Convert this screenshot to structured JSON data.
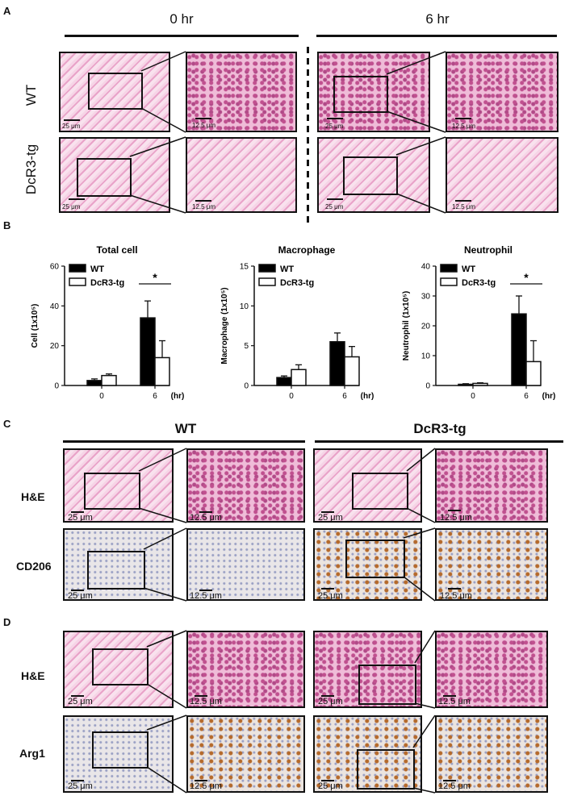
{
  "panelA": {
    "letter": "A",
    "col_headers": [
      "0 hr",
      "6 hr"
    ],
    "row_labels": [
      "WT",
      "DcR3-tg"
    ],
    "scale_main": "25 μm",
    "scale_zoom": "12.5 μm"
  },
  "panelB": {
    "letter": "B",
    "legend": [
      "WT",
      "DcR3-tg"
    ],
    "x_unit": "(hr)",
    "significance": "*"
  },
  "chart_data": [
    {
      "type": "bar",
      "title": "Total cell",
      "ylabel": "Cell (1x10⁵)",
      "categories": [
        "0",
        "6"
      ],
      "series": [
        {
          "name": "WT",
          "values": [
            2.5,
            34
          ],
          "errors": [
            0.8,
            8.5
          ],
          "color": "#000000"
        },
        {
          "name": "DcR3-tg",
          "values": [
            5,
            14
          ],
          "errors": [
            0.8,
            8.5
          ],
          "color": "#ffffff"
        }
      ],
      "ylim": [
        0,
        60
      ],
      "yticks": [
        0,
        20,
        40,
        60
      ],
      "significance": {
        "category": "6",
        "label": "*"
      }
    },
    {
      "type": "bar",
      "title": "Macrophage",
      "ylabel": "Macrophage (1x10⁵)",
      "categories": [
        "0",
        "6"
      ],
      "series": [
        {
          "name": "WT",
          "values": [
            1.0,
            5.5
          ],
          "errors": [
            0.2,
            1.1
          ],
          "color": "#000000"
        },
        {
          "name": "DcR3-tg",
          "values": [
            2.0,
            3.6
          ],
          "errors": [
            0.6,
            1.3
          ],
          "color": "#ffffff"
        }
      ],
      "ylim": [
        0,
        15
      ],
      "yticks": [
        0,
        5,
        10,
        15
      ]
    },
    {
      "type": "bar",
      "title": "Neutrophil",
      "ylabel": "Neutrophil (1x10⁵)",
      "categories": [
        "0",
        "6"
      ],
      "series": [
        {
          "name": "WT",
          "values": [
            0.4,
            24
          ],
          "errors": [
            0.2,
            6
          ],
          "color": "#000000"
        },
        {
          "name": "DcR3-tg",
          "values": [
            0.7,
            8
          ],
          "errors": [
            0.2,
            7
          ],
          "color": "#ffffff"
        }
      ],
      "ylim": [
        0,
        40
      ],
      "yticks": [
        0,
        10,
        20,
        30,
        40
      ],
      "significance": {
        "category": "6",
        "label": "*"
      }
    }
  ],
  "panelC": {
    "letter": "C",
    "col_headers": [
      "WT",
      "DcR3-tg"
    ],
    "row_labels": [
      "H&E",
      "CD206"
    ],
    "scale_main": "25 μm",
    "scale_zoom": "12.5 μm"
  },
  "panelD": {
    "letter": "D",
    "row_labels": [
      "H&E",
      "Arg1"
    ],
    "scale_main": "25 μm",
    "scale_zoom": "12.5 μm"
  }
}
